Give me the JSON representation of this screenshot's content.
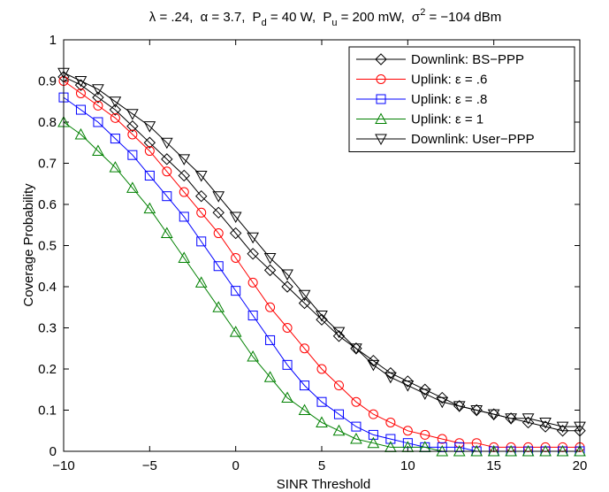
{
  "chart_data": {
    "type": "line",
    "title_parts": {
      "lambda": "λ = .24,",
      "alpha": "α = 3.7,",
      "pd_main": "P",
      "pd_sub": "d",
      "pd_rest": " = 40 W,",
      "pu_main": "P",
      "pu_sub": "u",
      "pu_rest": " = 200 mW,",
      "sigma_main": "σ",
      "sigma_sup": "2",
      "sigma_rest": " = −104 dBm"
    },
    "xlabel": "SINR Threshold",
    "ylabel": "Coverage Probability",
    "xlim": [
      -10,
      20
    ],
    "ylim": [
      0,
      1
    ],
    "x_ticks": [
      "−10",
      "−5",
      "0",
      "5",
      "10",
      "15",
      "20"
    ],
    "y_ticks": [
      "0",
      "0.1",
      "0.2",
      "0.3",
      "0.4",
      "0.5",
      "0.6",
      "0.7",
      "0.8",
      "0.9",
      "1"
    ],
    "grid": false,
    "legend_position": "top-right",
    "x": [
      -10,
      -9,
      -8,
      -7,
      -6,
      -5,
      -4,
      -3,
      -2,
      -1,
      0,
      1,
      2,
      3,
      4,
      5,
      6,
      7,
      8,
      9,
      10,
      11,
      12,
      13,
      14,
      15,
      16,
      17,
      18,
      19,
      20
    ],
    "series": [
      {
        "name": "Downlink: BS−PPP",
        "color": "#000000",
        "marker": "diamond",
        "values": [
          0.91,
          0.89,
          0.86,
          0.83,
          0.79,
          0.75,
          0.71,
          0.67,
          0.62,
          0.58,
          0.53,
          0.48,
          0.44,
          0.4,
          0.36,
          0.32,
          0.28,
          0.25,
          0.22,
          0.19,
          0.17,
          0.15,
          0.13,
          0.11,
          0.1,
          0.09,
          0.08,
          0.07,
          0.06,
          0.05,
          0.05
        ]
      },
      {
        "name": "Uplink: ε = .6",
        "color": "#ff0000",
        "marker": "circle",
        "values": [
          0.9,
          0.87,
          0.84,
          0.81,
          0.77,
          0.73,
          0.68,
          0.63,
          0.58,
          0.53,
          0.47,
          0.41,
          0.35,
          0.3,
          0.25,
          0.2,
          0.16,
          0.12,
          0.09,
          0.07,
          0.05,
          0.04,
          0.03,
          0.02,
          0.02,
          0.01,
          0.01,
          0.01,
          0.01,
          0.01,
          0.01
        ]
      },
      {
        "name": "Uplink: ε = .8",
        "color": "#0000ff",
        "marker": "square",
        "values": [
          0.86,
          0.83,
          0.8,
          0.76,
          0.72,
          0.67,
          0.62,
          0.57,
          0.51,
          0.45,
          0.39,
          0.33,
          0.27,
          0.21,
          0.16,
          0.12,
          0.09,
          0.06,
          0.04,
          0.03,
          0.02,
          0.01,
          0.01,
          0.01,
          0.0,
          0.0,
          0.0,
          0.0,
          0.0,
          0.0,
          0.0
        ]
      },
      {
        "name": "Uplink: ε = 1",
        "color": "#008000",
        "marker": "triangle-up",
        "values": [
          0.8,
          0.77,
          0.73,
          0.69,
          0.64,
          0.59,
          0.53,
          0.47,
          0.41,
          0.35,
          0.29,
          0.23,
          0.18,
          0.13,
          0.1,
          0.07,
          0.05,
          0.03,
          0.02,
          0.01,
          0.01,
          0.01,
          0.0,
          0.0,
          0.0,
          0.0,
          0.0,
          0.0,
          0.0,
          0.0,
          0.0
        ]
      },
      {
        "name": "Downlink: User−PPP",
        "color": "#000000",
        "marker": "triangle-down",
        "values": [
          0.92,
          0.9,
          0.88,
          0.85,
          0.82,
          0.79,
          0.75,
          0.71,
          0.67,
          0.62,
          0.57,
          0.52,
          0.47,
          0.43,
          0.38,
          0.33,
          0.29,
          0.25,
          0.21,
          0.18,
          0.16,
          0.14,
          0.12,
          0.11,
          0.1,
          0.09,
          0.08,
          0.08,
          0.07,
          0.06,
          0.06
        ]
      }
    ]
  }
}
